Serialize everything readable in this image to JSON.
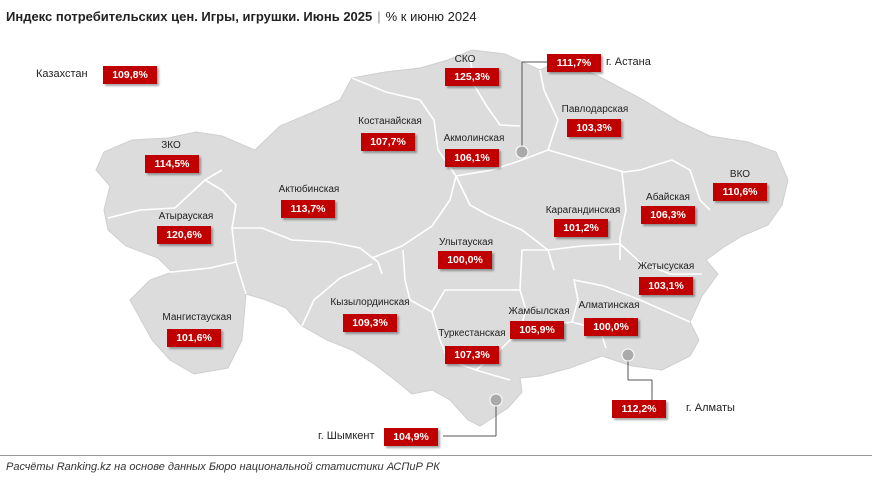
{
  "title": {
    "main": "Индекс потребительских цен. Игры, игрушки. Июнь 2025",
    "separator": "|",
    "sub": "% к июню 2024"
  },
  "country": {
    "name": "Казахстан",
    "value": "109,8%"
  },
  "regions": {
    "sko": {
      "name": "СКО",
      "value": "125,3%"
    },
    "kostanay": {
      "name": "Костанайская",
      "value": "107,7%"
    },
    "akmola": {
      "name": "Акмолинская",
      "value": "106,1%"
    },
    "pavlodar": {
      "name": "Павлодарская",
      "value": "103,3%"
    },
    "zko": {
      "name": "ЗКО",
      "value": "114,5%"
    },
    "aktobe": {
      "name": "Актюбинская",
      "value": "113,7%"
    },
    "vko": {
      "name": "ВКО",
      "value": "110,6%"
    },
    "abai": {
      "name": "Абайская",
      "value": "106,3%"
    },
    "atyrau": {
      "name": "Атырауская",
      "value": "120,6%"
    },
    "karaganda": {
      "name": "Карагандинская",
      "value": "101,2%"
    },
    "ulytau": {
      "name": "Улытауская",
      "value": "100,0%"
    },
    "zhetysu": {
      "name": "Жетысуская",
      "value": "103,1%"
    },
    "mangystau": {
      "name": "Мангистауская",
      "value": "101,6%"
    },
    "kyzylorda": {
      "name": "Кызылординская",
      "value": "109,3%"
    },
    "zhambyl": {
      "name": "Жамбылская",
      "value": "105,9%"
    },
    "almaty_reg": {
      "name": "Алматинская",
      "value": "100,0%"
    },
    "turkestan": {
      "name": "Туркестанская",
      "value": "107,3%"
    }
  },
  "cities": {
    "astana": {
      "name": "г. Астана",
      "value": "111,7%"
    },
    "almaty": {
      "name": "г. Алматы",
      "value": "112,2%"
    },
    "shymkent": {
      "name": "г. Шымкент",
      "value": "104,9%"
    }
  },
  "footer": "Расчёты Ranking.kz на основе данных Бюро национальной статистики АСПиР РК",
  "colors": {
    "map_fill": "#dcdcdc",
    "border": "#ffffff",
    "value_box": "#c00000",
    "city_dot": "#aaaaaa"
  }
}
